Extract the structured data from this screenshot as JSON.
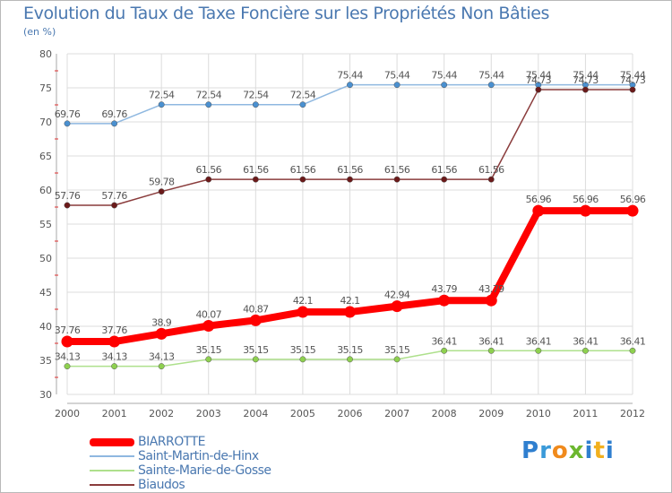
{
  "chart_data": {
    "type": "line",
    "title": "Evolution du Taux de Taxe Foncière sur les Propriétés Non Bâties",
    "subtitle": "(en %)",
    "categories": [
      "2000",
      "2001",
      "2002",
      "2003",
      "2004",
      "2005",
      "2006",
      "2007",
      "2008",
      "2009",
      "2010",
      "2011",
      "2012"
    ],
    "ylim": [
      30,
      80
    ],
    "yticks": [
      30,
      35,
      40,
      45,
      50,
      55,
      60,
      65,
      70,
      75,
      80
    ],
    "grid": true,
    "legend_position": "bottom-left",
    "series": [
      {
        "name": "BIARROTTE",
        "color": "#ff0000",
        "marker_color": "#ff0000",
        "width": "thick",
        "values": [
          37.76,
          37.76,
          38.9,
          40.07,
          40.87,
          42.1,
          42.1,
          42.94,
          43.79,
          43.79,
          56.96,
          56.96,
          56.96
        ],
        "labels": [
          "37.76",
          "37.76",
          "38.9",
          "40.07",
          "40.87",
          "42.1",
          "42.1",
          "42.94",
          "43.79",
          "43.79",
          "56.96",
          "56.96",
          "56.96"
        ]
      },
      {
        "name": "Saint-Martin-de-Hinx",
        "color": "#8fb8e0",
        "marker_color": "#4a90d0",
        "width": "thin",
        "values": [
          69.76,
          69.76,
          72.54,
          72.54,
          72.54,
          72.54,
          75.44,
          75.44,
          75.44,
          75.44,
          75.44,
          75.44,
          75.44
        ],
        "labels": [
          "69.76",
          "69.76",
          "72.54",
          "72.54",
          "72.54",
          "72.54",
          "75.44",
          "75.44",
          "75.44",
          "75.44",
          "75.44",
          "75.44",
          "75.44"
        ]
      },
      {
        "name": "Sainte-Marie-de-Gosse",
        "color": "#aee08c",
        "marker_color": "#8ed04f",
        "width": "thin",
        "values": [
          34.13,
          34.13,
          34.13,
          35.15,
          35.15,
          35.15,
          35.15,
          35.15,
          36.41,
          36.41,
          36.41,
          36.41,
          36.41
        ],
        "labels": [
          "34.13",
          "34.13",
          "34.13",
          "35.15",
          "35.15",
          "35.15",
          "35.15",
          "35.15",
          "36.41",
          "36.41",
          "36.41",
          "36.41",
          "36.41"
        ]
      },
      {
        "name": "Biaudos",
        "color": "#8a3c3c",
        "marker_color": "#6b1a1a",
        "width": "thin",
        "values": [
          57.76,
          57.76,
          59.78,
          61.56,
          61.56,
          61.56,
          61.56,
          61.56,
          61.56,
          61.56,
          74.73,
          74.73,
          74.73
        ],
        "labels": [
          "57.76",
          "57.76",
          "59.78",
          "61.56",
          "61.56",
          "61.56",
          "61.56",
          "61.56",
          "61.56",
          "61.56",
          "74.73",
          "74.73",
          "74.73"
        ]
      }
    ]
  },
  "logo": {
    "text": "Proxiti"
  }
}
